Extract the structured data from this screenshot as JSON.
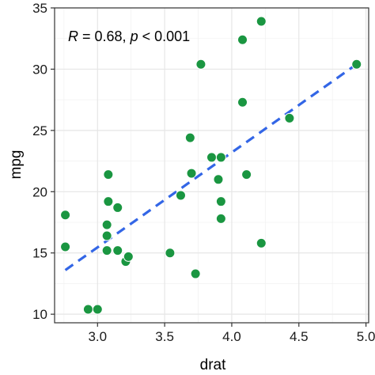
{
  "chart_data": {
    "type": "scatter",
    "xlabel": "drat",
    "ylabel": "mpg",
    "xlim": [
      2.68,
      5.02
    ],
    "ylim": [
      9.3,
      35.0
    ],
    "xticks": [
      3.0,
      3.5,
      4.0,
      4.5,
      5.0
    ],
    "xtick_labels": [
      "3.0",
      "3.5",
      "4.0",
      "4.5",
      "5.0"
    ],
    "yticks": [
      10,
      15,
      20,
      25,
      30,
      35
    ],
    "ytick_labels": [
      "10",
      "15",
      "20",
      "25",
      "30",
      "35"
    ],
    "grid": true,
    "annotation": {
      "r_symbol": "R",
      "r_text": " = 0.68, ",
      "p_symbol": "p",
      "p_text": " < 0.001"
    },
    "point_color": "#1a9641",
    "trend_color": "#3366e6",
    "points": [
      {
        "x": 3.9,
        "y": 21.0
      },
      {
        "x": 3.9,
        "y": 21.0
      },
      {
        "x": 3.85,
        "y": 22.8
      },
      {
        "x": 3.08,
        "y": 21.4
      },
      {
        "x": 3.15,
        "y": 18.7
      },
      {
        "x": 2.76,
        "y": 18.1
      },
      {
        "x": 3.21,
        "y": 14.3
      },
      {
        "x": 3.69,
        "y": 24.4
      },
      {
        "x": 3.92,
        "y": 22.8
      },
      {
        "x": 3.92,
        "y": 19.2
      },
      {
        "x": 3.92,
        "y": 17.8
      },
      {
        "x": 3.07,
        "y": 16.4
      },
      {
        "x": 3.07,
        "y": 17.3
      },
      {
        "x": 3.07,
        "y": 15.2
      },
      {
        "x": 2.93,
        "y": 10.4
      },
      {
        "x": 3.0,
        "y": 10.4
      },
      {
        "x": 3.23,
        "y": 14.7
      },
      {
        "x": 4.08,
        "y": 32.4
      },
      {
        "x": 4.93,
        "y": 30.4
      },
      {
        "x": 4.22,
        "y": 33.9
      },
      {
        "x": 3.7,
        "y": 21.5
      },
      {
        "x": 2.76,
        "y": 15.5
      },
      {
        "x": 3.15,
        "y": 15.2
      },
      {
        "x": 3.73,
        "y": 13.3
      },
      {
        "x": 3.08,
        "y": 19.2
      },
      {
        "x": 4.08,
        "y": 27.3
      },
      {
        "x": 4.43,
        "y": 26.0
      },
      {
        "x": 3.77,
        "y": 30.4
      },
      {
        "x": 4.22,
        "y": 15.8
      },
      {
        "x": 3.62,
        "y": 19.7
      },
      {
        "x": 3.54,
        "y": 15.0
      },
      {
        "x": 4.11,
        "y": 21.4
      }
    ],
    "trend": {
      "x0": 2.76,
      "y0": 13.6,
      "x1": 4.93,
      "y1": 30.4
    }
  }
}
